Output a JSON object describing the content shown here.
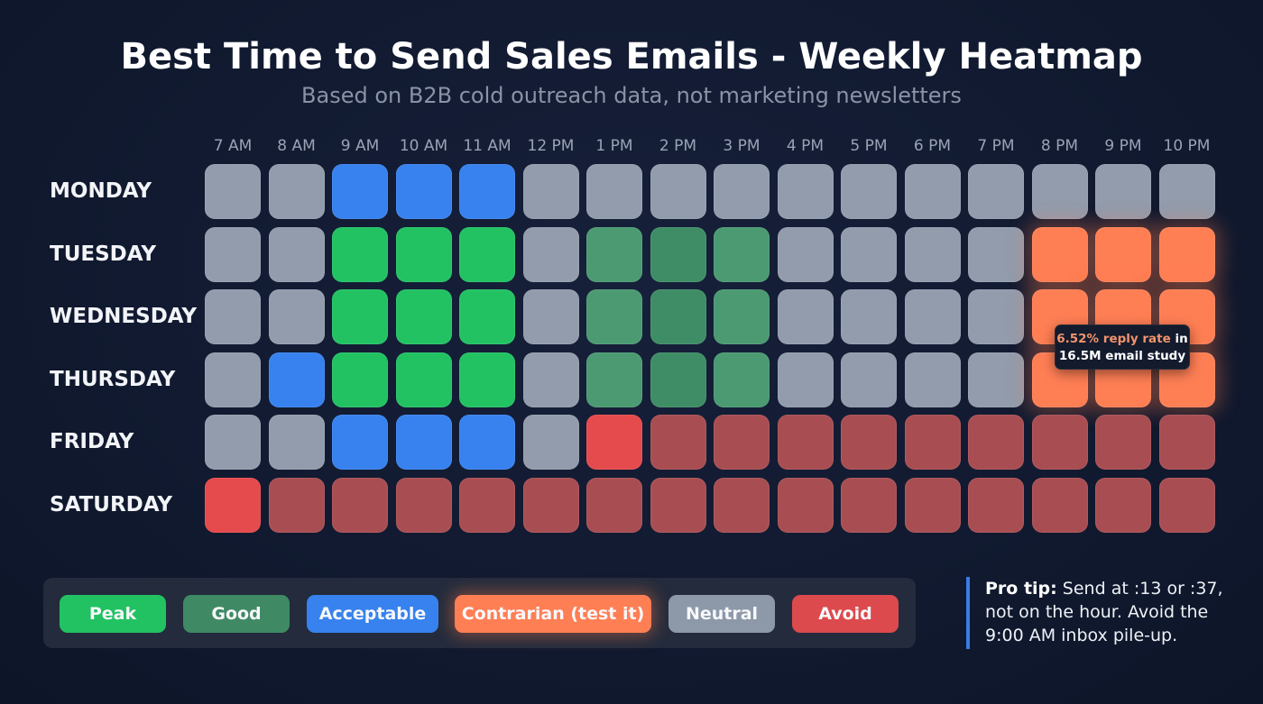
{
  "header": {
    "title": "Best Time to Send Sales Emails - Weekly Heatmap",
    "subtitle": "Based on B2B cold outreach data, not marketing newsletters"
  },
  "hours": [
    "7 AM",
    "8 AM",
    "9 AM",
    "10 AM",
    "11 AM",
    "12 PM",
    "1 PM",
    "2 PM",
    "3 PM",
    "4 PM",
    "5 PM",
    "6 PM",
    "7 PM",
    "8 PM",
    "9 PM",
    "10 PM"
  ],
  "days": [
    "MONDAY",
    "TUESDAY",
    "WEDNESDAY",
    "THURSDAY",
    "FRIDAY",
    "SATURDAY"
  ],
  "tooltip": {
    "accent_text": "6.52% reply rate",
    "text_after": " in",
    "line2": "16.5M email study"
  },
  "legend": [
    {
      "label": "Peak",
      "color": "#22c263"
    },
    {
      "label": "Good",
      "color": "#4b9a72"
    },
    {
      "label": "Acceptable",
      "color": "#3782ee"
    },
    {
      "label": "Contrarian (test it)",
      "color": "#ff7f55"
    },
    {
      "label": "Neutral",
      "color": "#929cac"
    },
    {
      "label": "Avoid",
      "color": "#e54a4c"
    }
  ],
  "protip": {
    "label": "Pro tip:",
    "text": " Send at :13 or :37, not on the hour. Avoid the 9:00 AM inbox pile-up."
  },
  "chart_data": {
    "type": "heatmap",
    "title": "Best Time to Send Sales Emails - Weekly Heatmap",
    "subtitle": "Based on B2B cold outreach data, not marketing newsletters",
    "x": [
      "7 AM",
      "8 AM",
      "9 AM",
      "10 AM",
      "11 AM",
      "12 PM",
      "1 PM",
      "2 PM",
      "3 PM",
      "4 PM",
      "5 PM",
      "6 PM",
      "7 PM",
      "8 PM",
      "9 PM",
      "10 PM"
    ],
    "y": [
      "MONDAY",
      "TUESDAY",
      "WEDNESDAY",
      "THURSDAY",
      "FRIDAY",
      "SATURDAY"
    ],
    "categories_legend": [
      "Peak",
      "Good",
      "Acceptable",
      "Contrarian (test it)",
      "Neutral",
      "Avoid"
    ],
    "values": [
      [
        "neutral",
        "neutral",
        "acceptable",
        "acceptable",
        "acceptable",
        "neutral",
        "neutral",
        "neutral",
        "neutral",
        "neutral",
        "neutral",
        "neutral",
        "neutral",
        "neutral",
        "neutral",
        "neutral"
      ],
      [
        "neutral",
        "neutral",
        "peak",
        "peak",
        "peak",
        "neutral",
        "good",
        "good2",
        "good",
        "neutral",
        "neutral",
        "neutral",
        "neutral",
        "contrarian",
        "contrarian",
        "contrarian"
      ],
      [
        "neutral",
        "neutral",
        "peak",
        "peak",
        "peak",
        "neutral",
        "good",
        "good2",
        "good",
        "neutral",
        "neutral",
        "neutral",
        "neutral",
        "contrarian",
        "contrarian",
        "contrarian"
      ],
      [
        "neutral",
        "acceptable",
        "peak",
        "peak",
        "peak",
        "neutral",
        "good",
        "good2",
        "good",
        "neutral",
        "neutral",
        "neutral",
        "neutral",
        "contrarian",
        "contrarian",
        "contrarian"
      ],
      [
        "neutral",
        "neutral",
        "acceptable",
        "acceptable",
        "acceptable",
        "neutral",
        "avoid-strong",
        "avoid",
        "avoid",
        "avoid",
        "avoid",
        "avoid",
        "avoid",
        "avoid",
        "avoid",
        "avoid"
      ],
      [
        "avoid-strong",
        "avoid",
        "avoid",
        "avoid",
        "avoid",
        "avoid",
        "avoid",
        "avoid",
        "avoid",
        "avoid",
        "avoid",
        "avoid",
        "avoid",
        "avoid",
        "avoid",
        "avoid"
      ]
    ],
    "annotations": [
      {
        "region": "Tue-Thu 8 PM-10 PM",
        "text": "6.52% reply rate in 16.5M email study"
      }
    ],
    "legend_position": "bottom"
  }
}
